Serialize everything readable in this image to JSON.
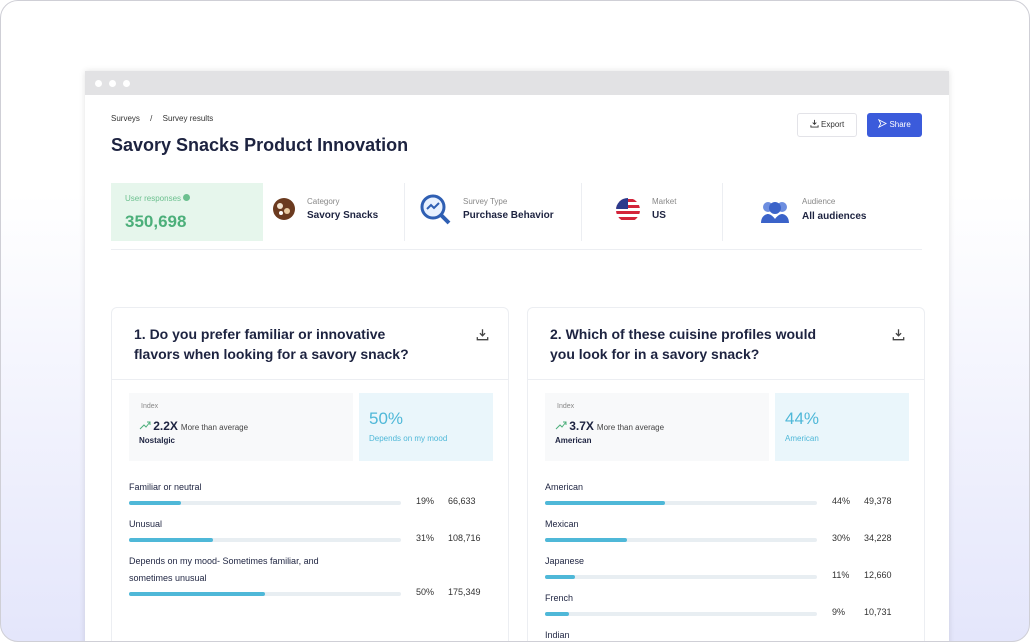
{
  "breadcrumb": {
    "items": [
      "Surveys",
      "Survey results"
    ],
    "separator": "/"
  },
  "header": {
    "title": "Savory Snacks Product Innovation",
    "export": "Export",
    "share": "Share"
  },
  "stats": {
    "responses": {
      "label": "User responses",
      "value": "350,698"
    },
    "category": {
      "label": "Category",
      "value": "Savory Snacks"
    },
    "survey_type": {
      "label": "Survey Type",
      "value": "Purchase Behavior"
    },
    "market": {
      "label": "Market",
      "value": "US"
    },
    "audience": {
      "label": "Audience",
      "value": "All audiences"
    }
  },
  "cards": [
    {
      "question": "1. Do you prefer familiar or innovative flavors when looking for a savory snack?",
      "index": {
        "label": "Index",
        "multiplier": "2.2X",
        "text": "More than average",
        "answer": "Nostalgic"
      },
      "highlight": {
        "percent": "50%",
        "answer": "Depends on my mood"
      },
      "rows": [
        {
          "label": "Familiar or neutral",
          "value": 19,
          "value_label": "19%",
          "count": "66,633"
        },
        {
          "label": "Unusual",
          "value": 31,
          "value_label": "31%",
          "count": "108,716"
        },
        {
          "label": "Depends on my mood- Sometimes familiar, and sometimes unusual",
          "value": 50,
          "value_label": "50%",
          "count": "175,349"
        }
      ]
    },
    {
      "question": "2. Which of these cuisine profiles would you look for in a savory snack?",
      "index": {
        "label": "Index",
        "multiplier": "3.7X",
        "text": "More than average",
        "answer": "American"
      },
      "highlight": {
        "percent": "44%",
        "answer": "American"
      },
      "rows": [
        {
          "label": "American",
          "value": 44,
          "value_label": "44%",
          "count": "49,378"
        },
        {
          "label": "Mexican",
          "value": 30,
          "value_label": "30%",
          "count": "34,228"
        },
        {
          "label": "Japanese",
          "value": 11,
          "value_label": "11%",
          "count": "12,660"
        },
        {
          "label": "French",
          "value": 9,
          "value_label": "9%",
          "count": "10,731"
        },
        {
          "label": "Indian"
        }
      ]
    }
  ]
}
